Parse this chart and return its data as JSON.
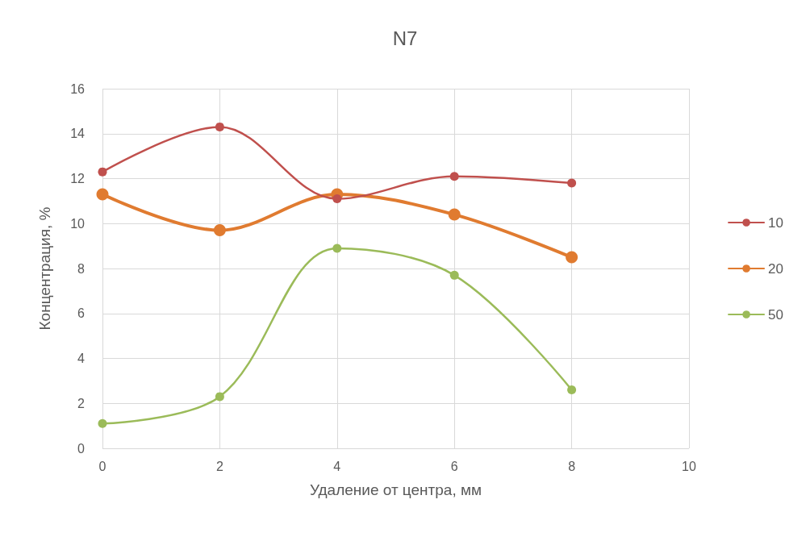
{
  "chart_data": {
    "type": "line",
    "title": "N7",
    "xlabel": "Удаление от центра, мм",
    "ylabel": "Концентрация, %",
    "x": [
      0,
      2,
      4,
      6,
      8
    ],
    "series": [
      {
        "name": "10",
        "color": "#c0504d",
        "values": [
          12.3,
          14.3,
          11.1,
          12.1,
          11.8
        ]
      },
      {
        "name": "20",
        "color": "#e07b30",
        "values": [
          11.3,
          9.7,
          11.3,
          10.4,
          8.5
        ]
      },
      {
        "name": "50",
        "color": "#9bbb59",
        "values": [
          1.1,
          2.3,
          8.9,
          7.7,
          2.6
        ]
      }
    ],
    "xlim": [
      0,
      10
    ],
    "xticks": [
      0,
      2,
      4,
      6,
      8,
      10
    ],
    "ylim": [
      0,
      16
    ],
    "yticks": [
      0,
      2,
      4,
      6,
      8,
      10,
      12,
      14,
      16
    ],
    "grid": true,
    "legend": "right",
    "marker": "circle",
    "line_style": "solid"
  }
}
